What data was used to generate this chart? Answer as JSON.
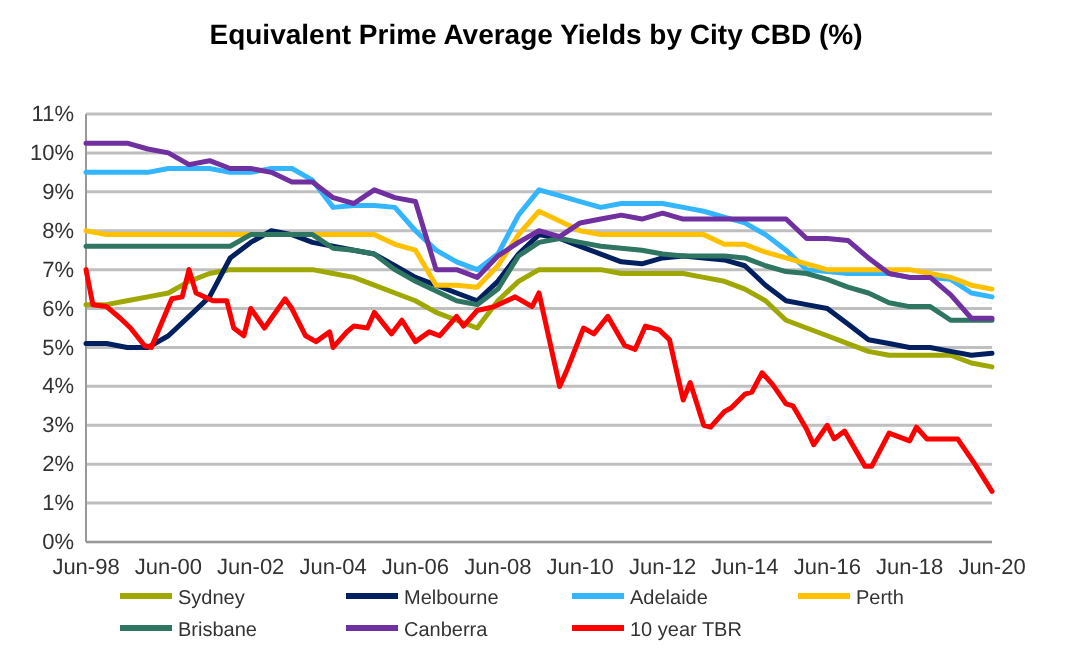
{
  "chart_data": {
    "type": "line",
    "title": "Equivalent Prime Average Yields by City CBD (%)",
    "x": [
      "1998-06",
      "1998-12",
      "1999-06",
      "1999-12",
      "2000-06",
      "2000-12",
      "2001-06",
      "2001-12",
      "2002-06",
      "2002-12",
      "2003-06",
      "2003-12",
      "2004-06",
      "2004-12",
      "2005-06",
      "2005-12",
      "2006-06",
      "2006-12",
      "2007-06",
      "2007-12",
      "2008-06",
      "2008-12",
      "2009-06",
      "2009-12",
      "2010-06",
      "2010-12",
      "2011-06",
      "2011-12",
      "2012-06",
      "2012-12",
      "2013-06",
      "2013-12",
      "2014-06",
      "2014-12",
      "2015-06",
      "2015-12",
      "2016-06",
      "2016-12",
      "2017-06",
      "2017-12",
      "2018-06",
      "2018-12",
      "2019-06",
      "2019-12",
      "2020-06"
    ],
    "series": [
      {
        "name": "Sydney",
        "color": "#9ea800",
        "values": [
          6.1,
          6.1,
          6.2,
          6.3,
          6.4,
          6.7,
          6.9,
          7.0,
          7.0,
          7.0,
          7.0,
          7.0,
          6.9,
          6.8,
          6.6,
          6.4,
          6.2,
          5.9,
          5.7,
          5.5,
          6.2,
          6.7,
          7.0,
          7.0,
          7.0,
          7.0,
          6.9,
          6.9,
          6.9,
          6.9,
          6.8,
          6.7,
          6.5,
          6.2,
          5.7,
          5.5,
          5.3,
          5.1,
          4.9,
          4.8,
          4.8,
          4.8,
          4.8,
          4.6,
          4.5
        ]
      },
      {
        "name": "Melbourne",
        "color": "#002060",
        "values": [
          5.1,
          5.1,
          5.0,
          5.0,
          5.3,
          5.8,
          6.3,
          7.3,
          7.7,
          8.0,
          7.9,
          7.7,
          7.6,
          7.5,
          7.4,
          7.1,
          6.8,
          6.6,
          6.4,
          6.2,
          6.7,
          7.4,
          7.9,
          7.8,
          7.6,
          7.4,
          7.2,
          7.15,
          7.3,
          7.35,
          7.3,
          7.25,
          7.1,
          6.6,
          6.2,
          6.1,
          6.0,
          5.6,
          5.2,
          5.1,
          5.0,
          5.0,
          4.9,
          4.8,
          4.85
        ]
      },
      {
        "name": "Adelaide",
        "color": "#33b5ff",
        "values": [
          9.5,
          9.5,
          9.5,
          9.5,
          9.6,
          9.6,
          9.6,
          9.5,
          9.5,
          9.6,
          9.6,
          9.3,
          8.6,
          8.65,
          8.65,
          8.6,
          8.0,
          7.5,
          7.2,
          7.0,
          7.4,
          8.4,
          9.05,
          8.9,
          8.75,
          8.6,
          8.7,
          8.7,
          8.7,
          8.6,
          8.5,
          8.35,
          8.2,
          7.9,
          7.5,
          7.0,
          6.95,
          6.9,
          6.9,
          6.9,
          6.8,
          6.8,
          6.75,
          6.4,
          6.3
        ]
      },
      {
        "name": "Perth",
        "color": "#ffc000",
        "values": [
          8.0,
          7.9,
          7.9,
          7.9,
          7.9,
          7.9,
          7.9,
          7.9,
          7.9,
          7.9,
          7.9,
          7.9,
          7.9,
          7.9,
          7.9,
          7.65,
          7.5,
          6.6,
          6.6,
          6.55,
          7.1,
          7.9,
          8.5,
          8.25,
          8.0,
          7.9,
          7.9,
          7.9,
          7.9,
          7.9,
          7.9,
          7.65,
          7.65,
          7.45,
          7.3,
          7.15,
          7.0,
          7.0,
          7.0,
          7.0,
          7.0,
          6.9,
          6.8,
          6.6,
          6.5
        ]
      },
      {
        "name": "Brisbane",
        "color": "#2e7562",
        "values": [
          7.6,
          7.6,
          7.6,
          7.6,
          7.6,
          7.6,
          7.6,
          7.6,
          7.9,
          7.9,
          7.9,
          7.9,
          7.55,
          7.5,
          7.4,
          7.0,
          6.7,
          6.45,
          6.2,
          6.1,
          6.5,
          7.35,
          7.7,
          7.8,
          7.7,
          7.6,
          7.55,
          7.5,
          7.4,
          7.35,
          7.35,
          7.35,
          7.3,
          7.1,
          6.95,
          6.9,
          6.75,
          6.55,
          6.4,
          6.15,
          6.05,
          6.05,
          5.7,
          5.7,
          5.7
        ]
      },
      {
        "name": "Canberra",
        "color": "#7030a0",
        "values": [
          10.25,
          10.25,
          10.25,
          10.1,
          10.0,
          9.7,
          9.8,
          9.6,
          9.6,
          9.5,
          9.25,
          9.25,
          8.85,
          8.7,
          9.05,
          8.85,
          8.75,
          7.0,
          7.0,
          6.8,
          7.35,
          7.7,
          8.0,
          7.85,
          8.2,
          8.3,
          8.4,
          8.3,
          8.45,
          8.3,
          8.3,
          8.3,
          8.3,
          8.3,
          8.3,
          7.8,
          7.8,
          7.75,
          7.3,
          6.9,
          6.8,
          6.8,
          6.35,
          5.75,
          5.75
        ]
      },
      {
        "name": "10 year TBR",
        "color": "#ff0000",
        "x": [
          "1998-06",
          "1998-08",
          "1998-12",
          "1999-04",
          "1999-07",
          "1999-11",
          "2000-01",
          "2000-07",
          "2000-10",
          "2000-12",
          "2001-02",
          "2001-07",
          "2001-11",
          "2002-01",
          "2002-04",
          "2002-06",
          "2002-10",
          "2003-04",
          "2003-06",
          "2003-10",
          "2004-01",
          "2004-05",
          "2004-06",
          "2004-10",
          "2004-12",
          "2005-04",
          "2005-06",
          "2005-11",
          "2006-02",
          "2006-06",
          "2006-10",
          "2007-01",
          "2007-06",
          "2007-08",
          "2007-12",
          "2008-05",
          "2008-11",
          "2009-04",
          "2009-06",
          "2009-12",
          "2010-02",
          "2010-07",
          "2010-10",
          "2011-02",
          "2011-07",
          "2011-10",
          "2012-01",
          "2012-05",
          "2012-08",
          "2012-12",
          "2013-02",
          "2013-06",
          "2013-08",
          "2013-12",
          "2014-02",
          "2014-06",
          "2014-08",
          "2014-11",
          "2015-02",
          "2015-06",
          "2015-08",
          "2015-12",
          "2016-02",
          "2016-06",
          "2016-08",
          "2016-11",
          "2017-05",
          "2017-07",
          "2017-12",
          "2018-06",
          "2018-08",
          "2018-11",
          "2019-08",
          "2020-01",
          "2020-06"
        ],
        "values": [
          7.0,
          6.1,
          6.05,
          5.75,
          5.5,
          5.05,
          5.0,
          6.25,
          6.3,
          7.0,
          6.4,
          6.2,
          6.2,
          5.5,
          5.3,
          6.0,
          5.5,
          6.25,
          6.0,
          5.3,
          5.15,
          5.4,
          5.0,
          5.4,
          5.55,
          5.5,
          5.9,
          5.35,
          5.7,
          5.15,
          5.4,
          5.3,
          5.8,
          5.55,
          5.95,
          6.05,
          6.3,
          6.05,
          6.4,
          4.0,
          4.4,
          5.5,
          5.35,
          5.8,
          5.05,
          4.95,
          5.55,
          5.45,
          5.2,
          3.65,
          4.1,
          3.0,
          2.95,
          3.35,
          3.45,
          3.8,
          3.85,
          4.35,
          4.05,
          3.55,
          3.5,
          2.9,
          2.5,
          3.0,
          2.65,
          2.85,
          1.95,
          1.95,
          2.8,
          2.6,
          2.95,
          2.65,
          2.65,
          2.0,
          1.3
        ]
      }
    ],
    "xlim": [
      "1998-06",
      "2020-06"
    ],
    "xticks": [
      {
        "value": "1998-06",
        "label": "Jun-98"
      },
      {
        "value": "2000-06",
        "label": "Jun-00"
      },
      {
        "value": "2002-06",
        "label": "Jun-02"
      },
      {
        "value": "2004-06",
        "label": "Jun-04"
      },
      {
        "value": "2006-06",
        "label": "Jun-06"
      },
      {
        "value": "2008-06",
        "label": "Jun-08"
      },
      {
        "value": "2010-06",
        "label": "Jun-10"
      },
      {
        "value": "2012-06",
        "label": "Jun-12"
      },
      {
        "value": "2014-06",
        "label": "Jun-14"
      },
      {
        "value": "2016-06",
        "label": "Jun-16"
      },
      {
        "value": "2018-06",
        "label": "Jun-18"
      },
      {
        "value": "2020-06",
        "label": "Jun-20"
      }
    ],
    "ylim": [
      0,
      11
    ],
    "yticks": [
      {
        "value": 0,
        "label": "0%"
      },
      {
        "value": 1,
        "label": "1%"
      },
      {
        "value": 2,
        "label": "2%"
      },
      {
        "value": 3,
        "label": "3%"
      },
      {
        "value": 4,
        "label": "4%"
      },
      {
        "value": 5,
        "label": "5%"
      },
      {
        "value": 6,
        "label": "6%"
      },
      {
        "value": 7,
        "label": "7%"
      },
      {
        "value": 8,
        "label": "8%"
      },
      {
        "value": 9,
        "label": "9%"
      },
      {
        "value": 10,
        "label": "10%"
      },
      {
        "value": 11,
        "label": "11%"
      }
    ],
    "grid": "y",
    "legend": "bottom",
    "marker": "none",
    "line_style": "solid"
  }
}
